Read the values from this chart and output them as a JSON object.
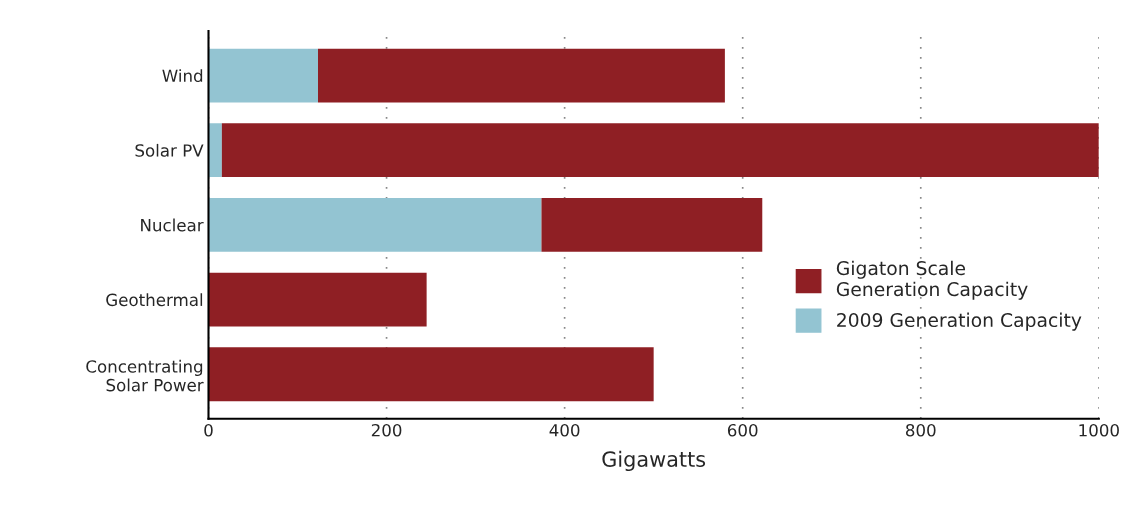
{
  "chart_data": {
    "type": "bar",
    "orientation": "horizontal",
    "stacked": true,
    "categories": [
      "Wind",
      "Solar PV",
      "Nuclear",
      "Geothermal",
      "Concentrating\nSolar Power"
    ],
    "series": [
      {
        "name": "2009 Generation Capacity",
        "color": "#93c4d2",
        "values": [
          123,
          15,
          374,
          0,
          0
        ]
      },
      {
        "name": "Gigaton Scale\nGeneration Capacity",
        "color": "#8f1f24",
        "values": [
          457,
          985,
          248,
          245,
          500
        ]
      }
    ],
    "xlabel": "Gigawatts",
    "xlim": [
      0,
      1000
    ],
    "xticks": [
      0,
      200,
      400,
      600,
      800,
      1000
    ],
    "grid": "x",
    "legend": "bottom right"
  }
}
